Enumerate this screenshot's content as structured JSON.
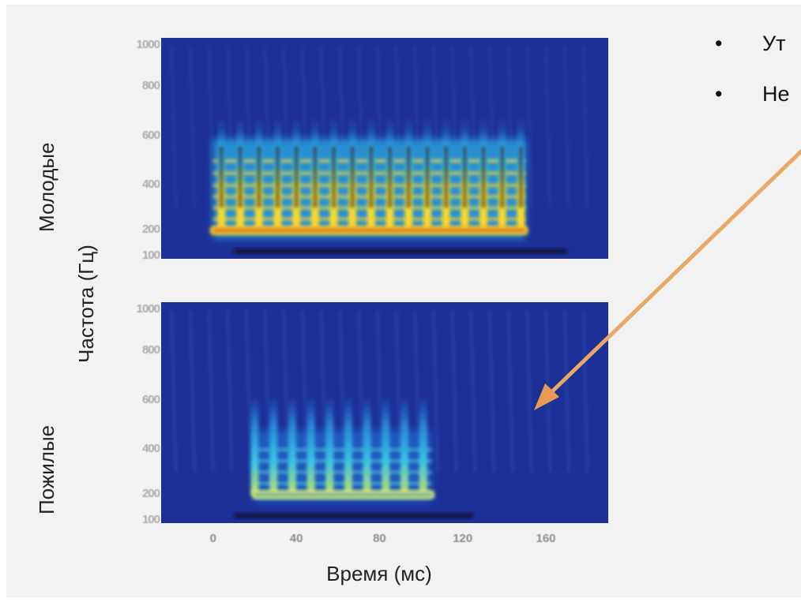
{
  "slide": {
    "bullets": [
      {
        "text": "Ут"
      },
      {
        "text": "Не"
      }
    ]
  },
  "labels": {
    "young": "Молодые",
    "elderly": "Пожилые",
    "ylabel": "Частота (Гц)",
    "xlabel": "Время (мс)"
  },
  "colors": {
    "background": "#1c2f96",
    "arrow": "#e99a55"
  },
  "chart_data": [
    {
      "type": "heatmap",
      "panel": "top",
      "row_label": "Молодые",
      "ylabel": "Частота (Гц)",
      "xlabel": "",
      "yticks": [
        "1000",
        "800",
        "600",
        "400",
        "200",
        "100"
      ],
      "ylim": [
        100,
        1000
      ],
      "xlim": [
        -25,
        190
      ],
      "voicing_start_ms": 0,
      "voicing_end_ms": 150,
      "harmonic_peaks_ms": [
        4,
        13,
        22,
        31,
        40,
        49,
        58,
        67,
        76,
        85,
        94,
        103,
        112,
        121,
        130,
        139,
        148
      ],
      "fundamental_hz": 200,
      "energy_band_hz": [
        160,
        590
      ],
      "intensity": "strong"
    },
    {
      "type": "heatmap",
      "panel": "bottom",
      "row_label": "Пожилые",
      "ylabel": "Частота (Гц)",
      "xlabel": "Время (мс)",
      "yticks": [
        "1000",
        "800",
        "600",
        "400",
        "200",
        "100"
      ],
      "xticks": [
        "0",
        "40",
        "80",
        "120",
        "160"
      ],
      "ylim": [
        100,
        1000
      ],
      "xlim": [
        -25,
        190
      ],
      "voicing_start_ms": 20,
      "voicing_end_ms": 105,
      "harmonic_peaks_ms": [
        20,
        29,
        38,
        47,
        56,
        65,
        74,
        83,
        92,
        101
      ],
      "fundamental_hz": 200,
      "energy_band_hz": [
        160,
        480
      ],
      "intensity": "weak"
    }
  ]
}
